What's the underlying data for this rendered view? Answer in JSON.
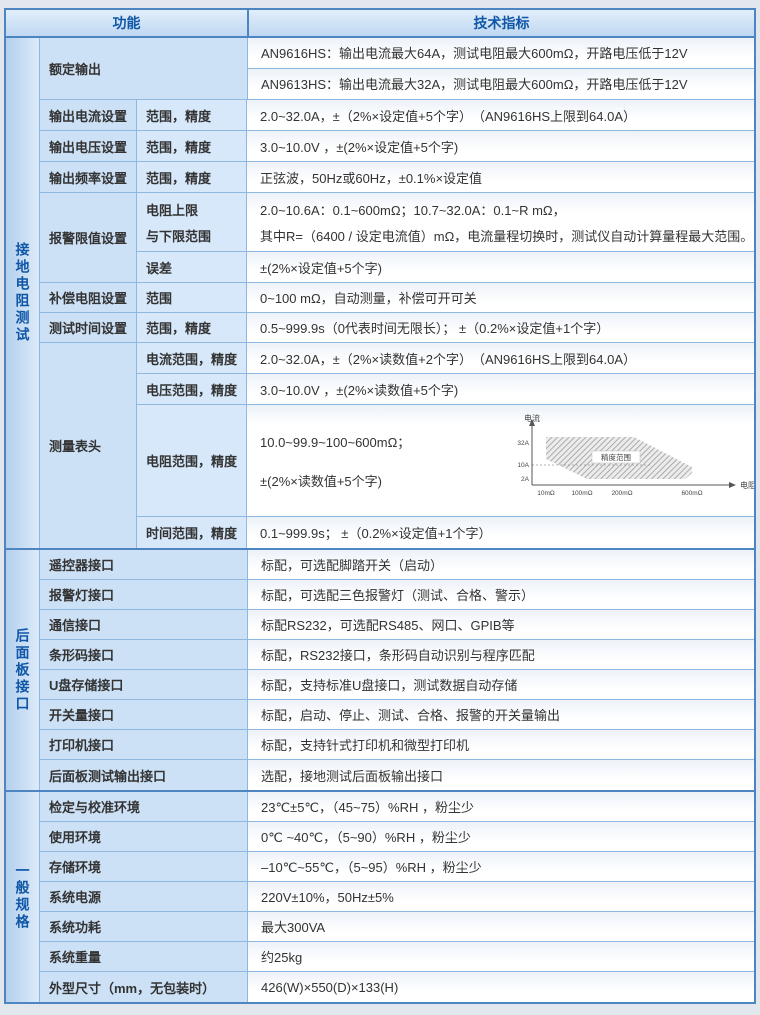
{
  "header": {
    "function_col": "功能",
    "spec_col": "技术指标"
  },
  "colors": {
    "border_thick": "#4d85c2",
    "border_thin": "#8fb8e0",
    "header_text": "#1057a7",
    "section_label_text": "#1057a7",
    "label_cell_bg": "#cde1f6",
    "sub_cell_bg": "#d7e8fa",
    "page_bg": "#e2e7ee"
  },
  "ground_test": {
    "section_label": "接地电阻测试",
    "rated_output": {
      "label": "额定输出",
      "values": [
        "AN9616HS：输出电流最大64A，测试电阻最大600mΩ，开路电压低于12V",
        "AN9613HS：输出电流最大32A，测试电阻最大600mΩ，开路电压低于12V"
      ]
    },
    "output_current": {
      "label": "输出电流设置",
      "sub": "范围，精度",
      "value": "2.0~32.0A，±（2%×设定值+5个字）　（AN9616HS上限到64.0A）"
    },
    "output_voltage": {
      "label": "输出电压设置",
      "sub": "范围，精度",
      "value": "3.0~10.0V ，±(2%×设定值+5个字)"
    },
    "output_freq": {
      "label": "输出频率设置",
      "sub": "范围，精度",
      "value": "正弦波，50Hz或60Hz，±0.1%×设定值"
    },
    "alarm_limit": {
      "label": "报警限值设置",
      "sub_line1": "电阻上限",
      "sub_line2": "与下限范围",
      "value_line1": "2.0~10.6A：0.1~600mΩ；10.7~32.0A：0.1~R mΩ，",
      "value_line2": "其中R=（6400 / 设定电流值）mΩ，电流量程切换时，测试仪自动计算量程最大范围。",
      "error_sub": "误差",
      "error_value": "±(2%×设定值+5个字)"
    },
    "comp_resistance": {
      "label": "补偿电阻设置",
      "sub": "范围",
      "value": "0~100 mΩ，自动测量，补偿可开可关"
    },
    "test_time": {
      "label": "测试时间设置",
      "sub": "范围，精度",
      "value": "0.5~999.9s（0代表时间无限长）； ±（0.2%×设定值+1个字）"
    },
    "meter": {
      "label": "测量表头",
      "current": {
        "sub": "电流范围，精度",
        "value": "2.0~32.0A，±（2%×读数值+2个字）　（AN9616HS上限到64.0A）"
      },
      "voltage": {
        "sub": "电压范围，精度",
        "value": "3.0~10.0V ，±(2%×读数值+5个字)"
      },
      "resistance": {
        "sub": "电阻范围，精度",
        "value_line1": "10.0~99.9~100~600mΩ；",
        "value_line2": "±(2%×读数值+5个字)"
      },
      "time": {
        "sub": "时间范围，精度",
        "value": "0.1~999.9s； ±（0.2%×设定值+1个字）"
      }
    }
  },
  "chart": {
    "type": "area",
    "y_axis_label": "电流",
    "x_axis_label": "电阻",
    "y_ticks": [
      "32A",
      "10A",
      "2A"
    ],
    "x_ticks": [
      "10mΩ",
      "100mΩ",
      "200mΩ",
      "600mΩ"
    ],
    "region_label": "精度范围"
  },
  "rear_panel": {
    "section_label": "后面板接口",
    "rows": [
      {
        "label": "遥控器接口",
        "value": "标配，可选配脚踏开关（启动）"
      },
      {
        "label": "报警灯接口",
        "value": "标配，可选配三色报警灯（测试、合格、警示）"
      },
      {
        "label": "通信接口",
        "value": "标配RS232，可选配RS485、网口、GPIB等"
      },
      {
        "label": "条形码接口",
        "value": "标配，RS232接口，条形码自动识别与程序匹配"
      },
      {
        "label": "U盘存储接口",
        "value": "标配，支持标准U盘接口，测试数据自动存储"
      },
      {
        "label": "开关量接口",
        "value": "标配，启动、停止、测试、合格、报警的开关量输出"
      },
      {
        "label": "打印机接口",
        "value": "标配，支持针式打印机和微型打印机"
      },
      {
        "label": "后面板测试输出接口",
        "value": "选配，接地测试后面板输出接口"
      }
    ]
  },
  "general": {
    "section_label": "一般规格",
    "rows": [
      {
        "label": "检定与校准环境",
        "value": "23℃±5℃，（45~75）%RH ，粉尘少"
      },
      {
        "label": "使用环境",
        "value": "0℃ ~40℃，（5~90）%RH ，粉尘少"
      },
      {
        "label": "存储环境",
        "value": "–10℃~55℃，（5~95）%RH ，粉尘少"
      },
      {
        "label": "系统电源",
        "value": "220V±10%，50Hz±5%"
      },
      {
        "label": "系统功耗",
        "value": "最大300VA"
      },
      {
        "label": "系统重量",
        "value": "约25kg"
      },
      {
        "label": "外型尺寸（mm，无包装时）",
        "value": "426(W)×550(D)×133(H)"
      }
    ]
  }
}
